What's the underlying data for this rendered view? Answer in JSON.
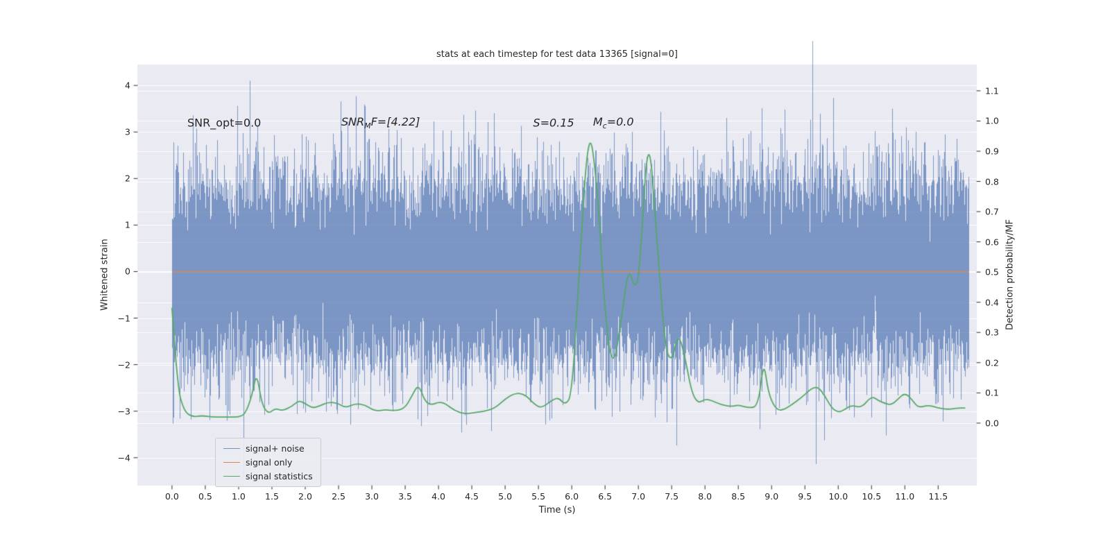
{
  "figure": {
    "background": "#ffffff",
    "plot_background": "#eaeaf2",
    "grid_color": "#ffffff",
    "text_color": "#262626"
  },
  "chart_data": {
    "type": "line",
    "title": "stats at each timestep for test data 13365 [signal=0]",
    "xlabel": "Time (s)",
    "ylabel_left": "Whitened strain",
    "ylabel_right": "Detection probability/MF",
    "xlim": [
      -0.52,
      12.08
    ],
    "ylim_left": [
      -4.6,
      4.45
    ],
    "ylim_right": [
      -0.207,
      1.187
    ],
    "grid": "horizontal",
    "legend_position": "lower left",
    "x_ticks": {
      "values": [
        0.0,
        0.5,
        1.0,
        1.5,
        2.0,
        2.5,
        3.0,
        3.5,
        4.0,
        4.5,
        5.0,
        5.5,
        6.0,
        6.5,
        7.0,
        7.5,
        8.0,
        8.5,
        9.0,
        9.5,
        10.0,
        10.5,
        11.0,
        11.5
      ],
      "labels": [
        "0.0",
        "0.5",
        "1.0",
        "1.5",
        "2.0",
        "2.5",
        "3.0",
        "3.5",
        "4.0",
        "4.5",
        "5.0",
        "5.5",
        "6.0",
        "6.5",
        "7.0",
        "7.5",
        "8.0",
        "8.5",
        "9.0",
        "9.5",
        "10.0",
        "10.5",
        "11.0",
        "11.5"
      ]
    },
    "y_left_ticks": {
      "values": [
        -4,
        -3,
        -2,
        -1,
        0,
        1,
        2,
        3,
        4
      ],
      "labels": [
        "−4",
        "−3",
        "−2",
        "−1",
        "0",
        "1",
        "2",
        "3",
        "4"
      ]
    },
    "y_right_ticks": {
      "values": [
        0.0,
        0.1,
        0.2,
        0.3,
        0.4,
        0.5,
        0.6,
        0.7,
        0.8,
        0.9,
        1.0,
        1.1
      ],
      "labels": [
        "0.0",
        "0.1",
        "0.2",
        "0.3",
        "0.4",
        "0.5",
        "0.6",
        "0.7",
        "0.8",
        "0.9",
        "1.0",
        "1.1"
      ]
    },
    "annotations": [
      {
        "x": 0.23,
        "y": 3.2,
        "italic": false,
        "segments": [
          {
            "text": "SNR_opt=0.0"
          }
        ]
      },
      {
        "x": 2.54,
        "y": 3.2,
        "italic": true,
        "segments": [
          {
            "text": "SNR"
          },
          {
            "text": "M",
            "sub": true
          },
          {
            "text": "F=[4.22]"
          }
        ]
      },
      {
        "x": 5.42,
        "y": 3.2,
        "italic": true,
        "segments": [
          {
            "text": "S=0.15"
          }
        ]
      },
      {
        "x": 6.32,
        "y": 3.2,
        "italic": true,
        "segments": [
          {
            "text": "M"
          },
          {
            "text": "c",
            "sub": true
          },
          {
            "text": "=0.0"
          }
        ]
      }
    ],
    "legend": {
      "entries": [
        {
          "label": "signal+ noise",
          "color": "rgba(76,114,176,0.75)"
        },
        {
          "label": "signal only",
          "color": "#dd8452"
        },
        {
          "label": "signal statistics",
          "color": "#55a868"
        }
      ]
    },
    "series": [
      {
        "name": "signal+ noise",
        "kind": "noise",
        "axis": "left",
        "color": "#4c72b0",
        "alpha": 0.7,
        "seed": 13365,
        "t_start": 0.0,
        "t_end": 11.96,
        "samples_per_column": 22,
        "std": 1.0,
        "mean": 0.0
      },
      {
        "name": "signal only",
        "kind": "constant",
        "axis": "left",
        "color": "rgba(221,132,82,0.95)",
        "width": 1.4,
        "value": 0.0,
        "t_start": 0.0,
        "t_end": 11.96
      },
      {
        "name": "signal statistics",
        "kind": "line",
        "axis": "right",
        "color": "#55a868",
        "width": 1.8,
        "x": [
          0.0,
          0.08,
          0.18,
          0.3,
          0.45,
          0.6,
          0.75,
          0.9,
          1.0,
          1.1,
          1.2,
          1.27,
          1.35,
          1.45,
          1.55,
          1.65,
          1.8,
          1.9,
          2.0,
          2.1,
          2.2,
          2.35,
          2.5,
          2.6,
          2.75,
          2.9,
          3.0,
          3.1,
          3.2,
          3.35,
          3.5,
          3.6,
          3.7,
          3.8,
          3.9,
          4.0,
          4.1,
          4.25,
          4.4,
          4.55,
          4.7,
          4.85,
          5.0,
          5.15,
          5.3,
          5.45,
          5.55,
          5.7,
          5.8,
          5.9,
          6.0,
          6.1,
          6.25,
          6.38,
          6.5,
          6.62,
          6.75,
          6.85,
          6.95,
          7.02,
          7.15,
          7.28,
          7.4,
          7.5,
          7.6,
          7.7,
          7.8,
          7.9,
          8.0,
          8.1,
          8.25,
          8.4,
          8.5,
          8.65,
          8.8,
          8.88,
          8.95,
          9.05,
          9.15,
          9.3,
          9.45,
          9.6,
          9.7,
          9.8,
          9.9,
          10.0,
          10.1,
          10.2,
          10.35,
          10.5,
          10.6,
          10.7,
          10.8,
          10.9,
          11.0,
          11.1,
          11.2,
          11.35,
          11.5,
          11.65,
          11.8,
          11.9
        ],
        "y": [
          0.38,
          0.12,
          0.04,
          0.02,
          0.025,
          0.02,
          0.02,
          0.02,
          0.02,
          0.03,
          0.09,
          0.17,
          0.06,
          0.03,
          0.05,
          0.04,
          0.055,
          0.075,
          0.065,
          0.05,
          0.055,
          0.07,
          0.065,
          0.05,
          0.065,
          0.06,
          0.045,
          0.04,
          0.045,
          0.04,
          0.05,
          0.09,
          0.13,
          0.07,
          0.06,
          0.07,
          0.065,
          0.04,
          0.03,
          0.035,
          0.04,
          0.05,
          0.08,
          0.1,
          0.095,
          0.06,
          0.05,
          0.075,
          0.085,
          0.06,
          0.09,
          0.45,
          1.0,
          0.8,
          0.35,
          0.17,
          0.35,
          0.52,
          0.44,
          0.5,
          1.0,
          0.6,
          0.25,
          0.2,
          0.3,
          0.22,
          0.1,
          0.065,
          0.08,
          0.075,
          0.06,
          0.055,
          0.06,
          0.05,
          0.055,
          0.21,
          0.1,
          0.05,
          0.04,
          0.06,
          0.085,
          0.115,
          0.12,
          0.09,
          0.05,
          0.035,
          0.045,
          0.06,
          0.05,
          0.09,
          0.075,
          0.065,
          0.06,
          0.08,
          0.1,
          0.08,
          0.05,
          0.06,
          0.05,
          0.045,
          0.05,
          0.05
        ]
      }
    ]
  }
}
